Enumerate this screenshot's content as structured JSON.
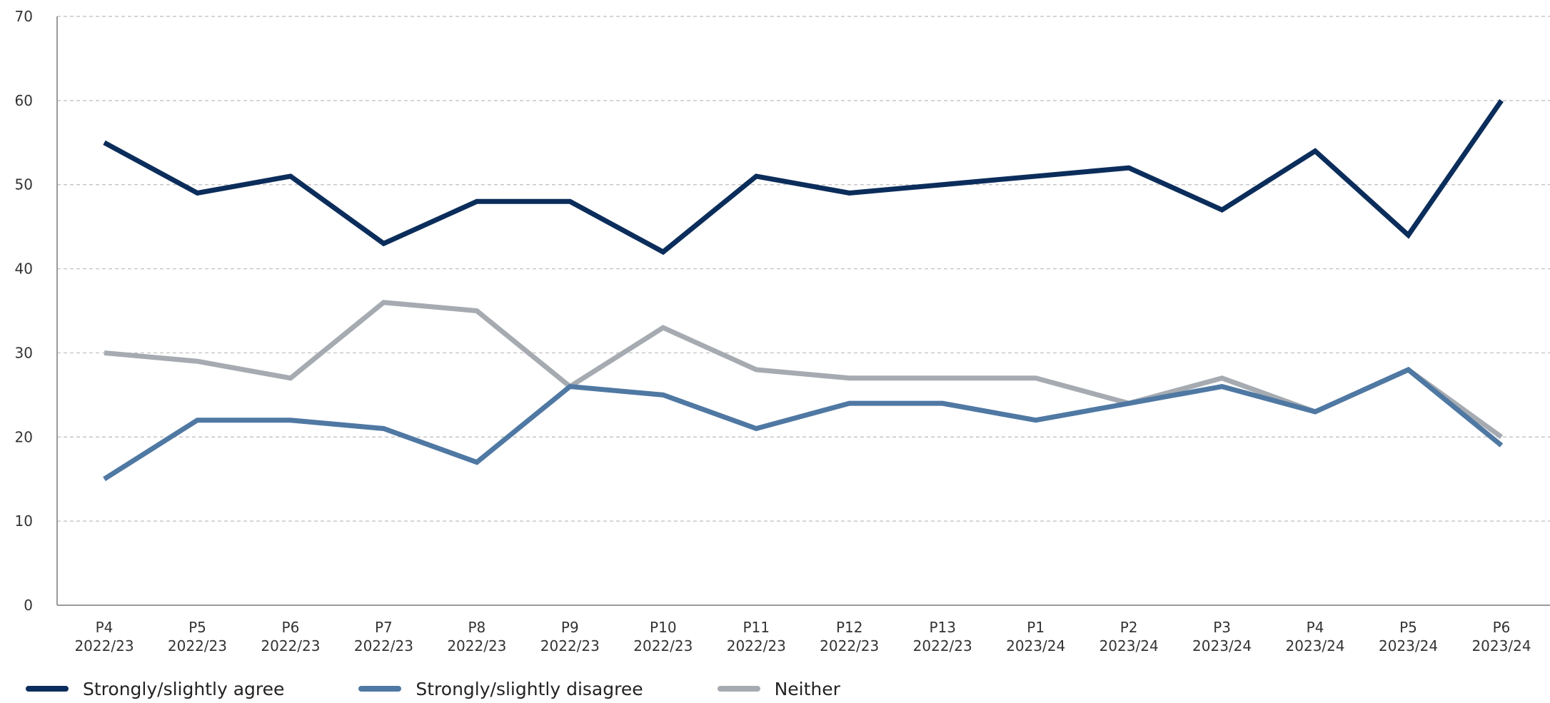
{
  "chart_data": {
    "type": "line",
    "title": "",
    "xlabel": "",
    "ylabel": "",
    "ylim": [
      0,
      70
    ],
    "yticks": [
      0,
      10,
      20,
      30,
      40,
      50,
      60,
      70
    ],
    "grid": true,
    "legend_position": "bottom-left",
    "categories": [
      {
        "period": "P4",
        "year": "2022/23"
      },
      {
        "period": "P5",
        "year": "2022/23"
      },
      {
        "period": "P6",
        "year": "2022/23"
      },
      {
        "period": "P7",
        "year": "2022/23"
      },
      {
        "period": "P8",
        "year": "2022/23"
      },
      {
        "period": "P9",
        "year": "2022/23"
      },
      {
        "period": "P10",
        "year": "2022/23"
      },
      {
        "period": "P11",
        "year": "2022/23"
      },
      {
        "period": "P12",
        "year": "2022/23"
      },
      {
        "period": "P13",
        "year": "2022/23"
      },
      {
        "period": "P1",
        "year": "2023/24"
      },
      {
        "period": "P2",
        "year": "2023/24"
      },
      {
        "period": "P3",
        "year": "2023/24"
      },
      {
        "period": "P4",
        "year": "2023/24"
      },
      {
        "period": "P5",
        "year": "2023/24"
      },
      {
        "period": "P6",
        "year": "2023/24"
      }
    ],
    "series": [
      {
        "name": "Strongly/slightly agree",
        "color": "#0b2d5b",
        "values": [
          55,
          49,
          51,
          43,
          48,
          48,
          42,
          51,
          49,
          50,
          51,
          52,
          47,
          54,
          44,
          60
        ]
      },
      {
        "name": "Strongly/slightly disagree",
        "color": "#4f78a3",
        "values": [
          15,
          22,
          22,
          21,
          17,
          26,
          25,
          21,
          24,
          24,
          22,
          24,
          26,
          23,
          28,
          19
        ]
      },
      {
        "name": "Neither",
        "color": "#a5abb1",
        "values": [
          30,
          29,
          27,
          36,
          35,
          26,
          33,
          28,
          27,
          27,
          27,
          24,
          27,
          23,
          28,
          20
        ]
      }
    ]
  }
}
